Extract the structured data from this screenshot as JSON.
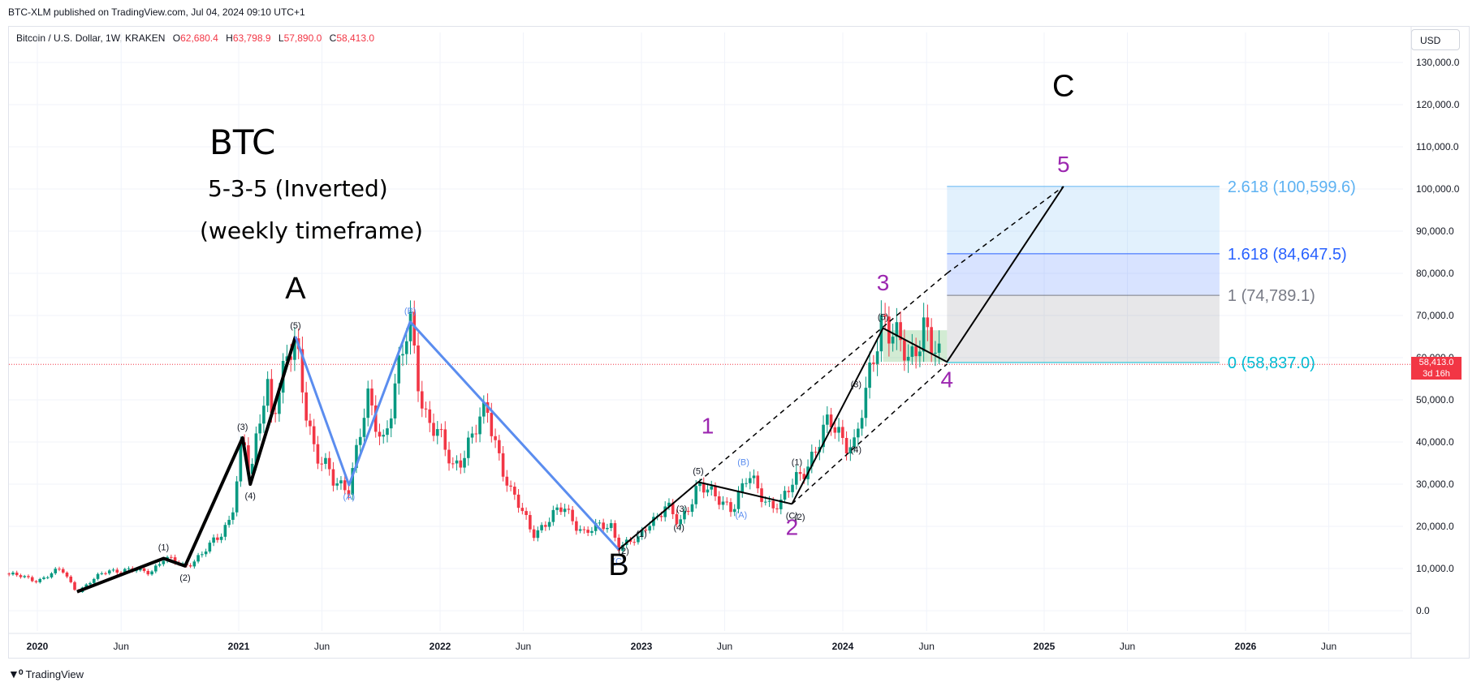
{
  "header": {
    "published": "BTC-XLM published on TradingView.com, Jul 04, 2024 09:10 UTC+1",
    "symbol": "Bitcoin / U.S. Dollar, 1W, KRAKEN",
    "o_label": "O",
    "o_value": "62,680.4",
    "h_label": "H",
    "h_value": "63,798.9",
    "l_label": "L",
    "l_value": "57,890.0",
    "c_label": "C",
    "c_value": "58,413.0",
    "currency": "USD"
  },
  "price_tag": {
    "price": "58,413.0",
    "countdown": "3d 16h"
  },
  "footer": {
    "brand": "TradingView",
    "logo": "tradingview-logo-icon"
  },
  "colors": {
    "up": "#089981",
    "down": "#f23645",
    "wave_black": "#000000",
    "wave_blue": "#5b8def",
    "purple": "#9c27b0",
    "fib_0": "#00bcd4",
    "fib_1618": "#2962ff",
    "fib_2618": "#5eb2f2",
    "fib_1": "#787b86"
  },
  "chart_data": {
    "type": "candlestick",
    "title": "BTC",
    "annotations_text": [
      "5-3-5 (Inverted)",
      "(weekly timeframe)"
    ],
    "y_axis": {
      "ylim": [
        -5000,
        135000
      ],
      "ticks": [
        0,
        10000,
        20000,
        30000,
        40000,
        50000,
        60000,
        70000,
        80000,
        90000,
        100000,
        110000,
        120000,
        130000
      ],
      "tick_labels": [
        "0.0",
        "10,000.0",
        "20,000.0",
        "30,000.0",
        "40,000.0",
        "50,000.0",
        "60,000.0",
        "70,000.0",
        "80,000.0",
        "90,000.0",
        "100,000.0",
        "110,000.0",
        "120,000.0",
        "130,000.0"
      ]
    },
    "x_axis": {
      "ticks": [
        "2020-01",
        "2020-06",
        "2021-01",
        "2021-06",
        "2022-01",
        "2022-06",
        "2023-01",
        "2023-06",
        "2024-01",
        "2024-06",
        "2025-01",
        "2025-06",
        "2026-01",
        "2026-06"
      ],
      "tick_labels": [
        "2020",
        "Jun",
        "2021",
        "Jun",
        "2022",
        "Jun",
        "2023",
        "Jun",
        "2024",
        "Jun",
        "2025",
        "Jun",
        "2026",
        "Jun"
      ]
    },
    "price_anchors": [
      [
        "2019-11-04",
        8800
      ],
      [
        "2020-01-01",
        7200
      ],
      [
        "2020-02-14",
        9800
      ],
      [
        "2020-03-13",
        4500
      ],
      [
        "2020-05-08",
        9700
      ],
      [
        "2020-07-24",
        9300
      ],
      [
        "2020-08-17",
        12400
      ],
      [
        "2020-09-25",
        10600
      ],
      [
        "2020-10-26",
        13500
      ],
      [
        "2020-11-27",
        17500
      ],
      [
        "2020-12-18",
        23000
      ],
      [
        "2021-01-08",
        41000
      ],
      [
        "2021-01-22",
        30000
      ],
      [
        "2021-02-21",
        57000
      ],
      [
        "2021-03-01",
        47000
      ],
      [
        "2021-04-14",
        63500
      ],
      [
        "2021-05-20",
        37000
      ],
      [
        "2021-06-22",
        30500
      ],
      [
        "2021-07-20",
        30000
      ],
      [
        "2021-08-23",
        49000
      ],
      [
        "2021-09-20",
        41000
      ],
      [
        "2021-11-08",
        67500
      ],
      [
        "2021-12-03",
        48000
      ],
      [
        "2022-01-24",
        34000
      ],
      [
        "2022-03-28",
        47000
      ],
      [
        "2022-05-09",
        28000
      ],
      [
        "2022-06-18",
        18500
      ],
      [
        "2022-08-14",
        24300
      ],
      [
        "2022-09-20",
        18500
      ],
      [
        "2022-11-07",
        20500
      ],
      [
        "2022-11-21",
        15500
      ],
      [
        "2022-12-26",
        16500
      ],
      [
        "2023-01-13",
        21000
      ],
      [
        "2023-02-15",
        24700
      ],
      [
        "2023-03-10",
        20000
      ],
      [
        "2023-04-14",
        30500
      ],
      [
        "2023-05-12",
        26500
      ],
      [
        "2023-06-15",
        25000
      ],
      [
        "2023-07-13",
        31300
      ],
      [
        "2023-08-17",
        26000
      ],
      [
        "2023-09-11",
        25200
      ],
      [
        "2023-10-23",
        34000
      ],
      [
        "2023-12-08",
        44000
      ],
      [
        "2024-01-22",
        39500
      ],
      [
        "2024-02-12",
        50000
      ],
      [
        "2024-03-14",
        72000
      ],
      [
        "2024-05-01",
        57000
      ],
      [
        "2024-05-27",
        70000
      ],
      [
        "2024-06-24",
        58413
      ]
    ],
    "elliott_waves": {
      "black_impulse": [
        [
          "2020-03-13",
          4500,
          ""
        ],
        [
          "2020-08-17",
          12400,
          "(1)"
        ],
        [
          "2020-09-25",
          10600,
          "(2)"
        ],
        [
          "2021-01-08",
          41000,
          "(3)"
        ],
        [
          "2021-01-22",
          30000,
          "(4)"
        ],
        [
          "2021-04-14",
          65000,
          "(5)"
        ]
      ],
      "blue_abc": [
        [
          "2021-04-14",
          65000,
          ""
        ],
        [
          "2021-07-20",
          29800,
          "(A)"
        ],
        [
          "2021-11-08",
          68500,
          "(B)"
        ],
        [
          "2022-11-21",
          14500,
          "(C)"
        ]
      ],
      "black_wave_1": [
        [
          "2022-11-21",
          14500,
          ""
        ],
        [
          "2023-04-14",
          30500,
          "(5)"
        ],
        [
          "2023-10-01",
          25300,
          "(C)"
        ]
      ],
      "black_wave_3_4": [
        [
          "2023-10-01",
          25300,
          ""
        ],
        [
          "2024-03-14",
          67000,
          "(5)"
        ],
        [
          "2024-07-08",
          59000,
          ""
        ],
        [
          "2025-02-05",
          100599.6,
          ""
        ]
      ],
      "sub_labels": [
        [
          "2023-01-01",
          17500,
          "(1)"
        ],
        [
          "2023-03-15",
          23500,
          "(3)"
        ],
        [
          "2023-03-10",
          19000,
          "(4)"
        ],
        [
          "2022-11-30",
          13500,
          "(2)"
        ],
        [
          "2023-07-01",
          22000,
          "(A)"
        ],
        [
          "2023-07-05",
          34500,
          "(B)"
        ],
        [
          "2023-10-15",
          21500,
          "(2)"
        ],
        [
          "2023-10-10",
          34500,
          "(1)"
        ],
        [
          "2024-01-25",
          53000,
          "(3)"
        ],
        [
          "2024-01-25",
          37500,
          "(4)"
        ]
      ],
      "purple_labels": [
        [
          "2023-05-01",
          42000,
          "1"
        ],
        [
          "2023-10-01",
          18000,
          "2"
        ],
        [
          "2024-03-14",
          76000,
          "3"
        ],
        [
          "2024-07-08",
          53000,
          "4"
        ],
        [
          "2025-02-05",
          104000,
          "5"
        ]
      ],
      "black_big_labels": [
        [
          "2021-04-14",
          74000,
          "A"
        ],
        [
          "2022-11-21",
          8500,
          "B"
        ],
        [
          "2025-02-05",
          122000,
          "C"
        ]
      ]
    },
    "fib_extension": {
      "levels": [
        {
          "ratio": "0",
          "price": 58837.0,
          "label": "0 (58,837.0)"
        },
        {
          "ratio": "1",
          "price": 74789.1,
          "label": "1 (74,789.1)"
        },
        {
          "ratio": "1.618",
          "price": 84647.5,
          "label": "1.618 (84,647.5)"
        },
        {
          "ratio": "2.618",
          "price": 100599.6,
          "label": "2.618 (100,599.6)"
        }
      ],
      "start": "2024-07-08",
      "end": "2025-11-15"
    },
    "channel": {
      "upper": [
        [
          "2023-04-14",
          30500
        ],
        [
          "2024-07-08",
          80000
        ]
      ],
      "lower": [
        [
          "2023-10-01",
          25300
        ],
        [
          "2024-07-08",
          58500
        ]
      ]
    },
    "consolidation_box": {
      "from": "2024-03-14",
      "to": "2024-07-08",
      "low": 59000,
      "high": 66500
    },
    "current_price": 58413.0
  }
}
